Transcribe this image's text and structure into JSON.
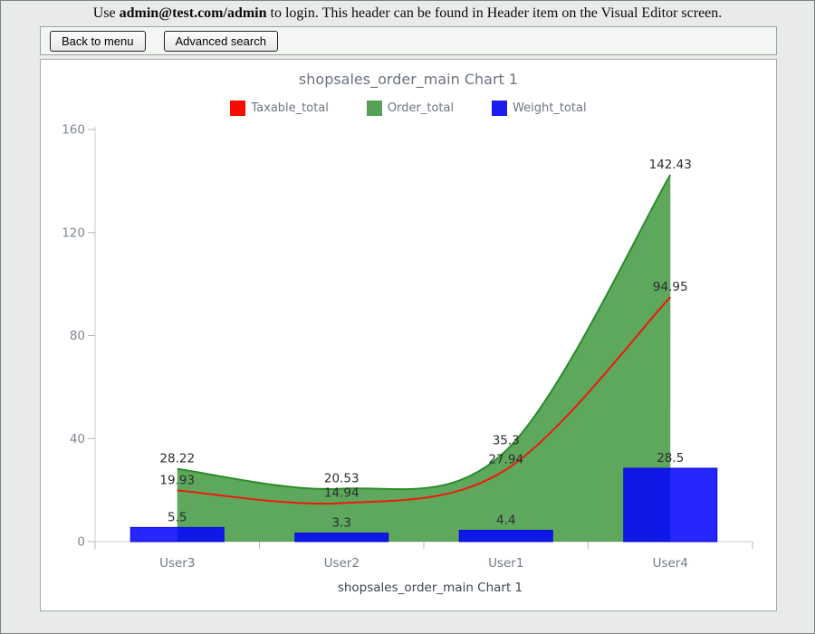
{
  "page": {
    "header": {
      "prefix": "Use ",
      "bold": "admin@test.com/admin",
      "suffix": " to login. This header can be found in Header item on the Visual Editor screen."
    }
  },
  "toolbar": {
    "back_button": "Back to menu",
    "advanced_search_button": "Advanced search"
  },
  "chart_data": {
    "type": "mixed",
    "title": "shopsales_order_main Chart 1",
    "xlabel": "shopsales_order_main Chart 1",
    "categories": [
      "User3",
      "User2",
      "User1",
      "User4"
    ],
    "ylim": [
      0,
      160
    ],
    "y_ticks": [
      0,
      40,
      80,
      120,
      160
    ],
    "grid": false,
    "legend_position": "top",
    "legend": [
      {
        "name": "Taxable_total",
        "color": "#fa0b02"
      },
      {
        "name": "Order_total",
        "color": "#55a155"
      },
      {
        "name": "Weight_total",
        "color": "#1c1cef"
      }
    ],
    "series": [
      {
        "name": "Order_total",
        "type": "area-spline",
        "values": [
          28.22,
          20.53,
          35.3,
          142.43
        ],
        "labels": [
          "28.22",
          "20.53",
          "35.3",
          "142.43"
        ],
        "fill": "rgba(47,143,47,0.78)",
        "stroke": "#2b8c2b"
      },
      {
        "name": "Weight_total",
        "type": "bar",
        "values": [
          5.5,
          3.3,
          4.4,
          28.5
        ],
        "labels": [
          "5.5",
          "3.3",
          "4.4",
          "28.5"
        ],
        "fill": "rgba(0,0,255,0.85)",
        "stroke": "#0909d2"
      },
      {
        "name": "Taxable_total",
        "type": "spline",
        "values": [
          19.93,
          14.94,
          27.94,
          94.95
        ],
        "labels": [
          "19.93",
          "14.94",
          "27.94",
          "94.95"
        ],
        "stroke": "#ec1a0d"
      }
    ],
    "colors": {
      "axis": "#c7cccc",
      "tick": "#b3b8b8",
      "tick_label": "#7d8692",
      "category_label": "#717b87",
      "xlabel": "#3d444e",
      "data_label": "#2d2d2d"
    }
  }
}
